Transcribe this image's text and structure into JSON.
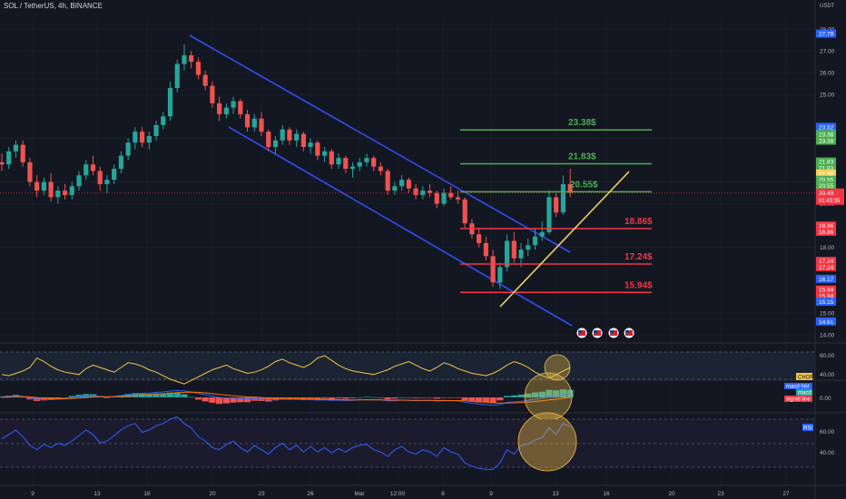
{
  "header": {
    "symbol_title": "SOL / TetherUS, 4h, BINANCE",
    "currency": "USDT"
  },
  "colors": {
    "background": "#131722",
    "up": "#26a69a",
    "down": "#ef5350",
    "channel": "#2f4ef0",
    "trendline": "#f6d35a",
    "target_green": "#4caf50",
    "target_red": "#f23645",
    "chop": "#f6c343",
    "rsi": "#2962ff",
    "macd_line": "#2962ff",
    "signal_line": "#ff6d00"
  },
  "chart_data": {
    "type": "candlestick",
    "title": "SOL / TetherUS, 4h, BINANCE",
    "ylim": [
      13.7,
      28.3
    ],
    "y_ticks": [
      "28.00",
      "27.00",
      "26.00",
      "25.00",
      "23.00",
      "21.00",
      "20.00",
      "18.00",
      "15.00",
      "14.00"
    ],
    "x_ticks": [
      "9",
      "13",
      "16",
      "20",
      "23",
      "26",
      "Mar",
      "12:00",
      "6",
      "9",
      "13",
      "16",
      "20",
      "23",
      "27"
    ],
    "current_price": "20.49",
    "countdown": "01:43:35",
    "targets": [
      {
        "label": "23.38$",
        "value": 23.38,
        "color": "green"
      },
      {
        "label": "21.83$",
        "value": 21.83,
        "color": "green"
      },
      {
        "label": "20.55$",
        "value": 20.55,
        "color": "green"
      },
      {
        "label": "18.86$",
        "value": 18.86,
        "color": "red"
      },
      {
        "label": "17.24$",
        "value": 17.24,
        "color": "red"
      },
      {
        "label": "15.94$",
        "value": 15.94,
        "color": "red"
      }
    ],
    "price_tags": [
      {
        "label": "27.79",
        "value": 27.79,
        "color": "#2962ff"
      },
      {
        "label": "23.52",
        "value": 23.52,
        "color": "#2962ff"
      },
      {
        "label": "23.38",
        "value": 23.19,
        "color": "#4caf50"
      },
      {
        "label": "23.38",
        "value": 22.89,
        "color": "#4caf50"
      },
      {
        "label": "21.83",
        "value": 21.93,
        "color": "#4caf50"
      },
      {
        "label": "21.83",
        "value": 21.65,
        "color": "#4caf50"
      },
      {
        "label": "21.38",
        "value": 21.38,
        "color": "#f6d35a"
      },
      {
        "label": "20.55",
        "value": 21.1,
        "color": "#4caf50"
      },
      {
        "label": "20.55",
        "value": 20.83,
        "color": "#4caf50"
      },
      {
        "label": "18.86",
        "value": 19.0,
        "color": "#f23645"
      },
      {
        "label": "18.86",
        "value": 18.72,
        "color": "#f23645"
      },
      {
        "label": "17.24",
        "value": 17.38,
        "color": "#f23645"
      },
      {
        "label": "17.24",
        "value": 17.1,
        "color": "#f23645"
      },
      {
        "label": "16.17",
        "value": 16.56,
        "color": "#2962ff"
      },
      {
        "label": "15.94",
        "value": 16.07,
        "color": "#f23645"
      },
      {
        "label": "15.94",
        "value": 15.79,
        "color": "#f23645"
      },
      {
        "label": "15.15",
        "value": 15.52,
        "color": "#2962ff"
      },
      {
        "label": "14.61",
        "value": 14.61,
        "color": "#2962ff"
      }
    ],
    "ohlc": [
      [
        21.9,
        22.3,
        21.5,
        21.8
      ],
      [
        21.8,
        22.6,
        21.6,
        22.4
      ],
      [
        22.4,
        22.9,
        22.1,
        22.7
      ],
      [
        22.7,
        22.9,
        21.7,
        21.9
      ],
      [
        21.9,
        22.1,
        20.8,
        21.0
      ],
      [
        21.0,
        21.3,
        20.3,
        20.6
      ],
      [
        20.6,
        21.2,
        20.4,
        21.0
      ],
      [
        21.0,
        21.4,
        20.1,
        20.3
      ],
      [
        20.3,
        20.8,
        20.0,
        20.6
      ],
      [
        20.6,
        20.9,
        20.2,
        20.4
      ],
      [
        20.4,
        21.0,
        20.2,
        20.8
      ],
      [
        20.8,
        21.5,
        20.6,
        21.3
      ],
      [
        21.3,
        22.0,
        21.1,
        21.8
      ],
      [
        21.8,
        22.2,
        21.3,
        21.5
      ],
      [
        21.5,
        21.7,
        20.6,
        20.9
      ],
      [
        20.9,
        21.3,
        20.5,
        21.1
      ],
      [
        21.1,
        21.8,
        20.9,
        21.6
      ],
      [
        21.6,
        22.4,
        21.4,
        22.2
      ],
      [
        22.2,
        23.0,
        22.0,
        22.8
      ],
      [
        22.8,
        23.5,
        22.5,
        23.3
      ],
      [
        23.3,
        23.5,
        22.6,
        22.8
      ],
      [
        22.8,
        23.3,
        22.5,
        23.1
      ],
      [
        23.1,
        23.8,
        22.9,
        23.6
      ],
      [
        23.6,
        24.2,
        23.4,
        24.0
      ],
      [
        24.0,
        25.6,
        23.8,
        25.3
      ],
      [
        25.3,
        26.6,
        25.1,
        26.4
      ],
      [
        26.4,
        27.3,
        26.1,
        26.8
      ],
      [
        26.8,
        27.0,
        26.2,
        26.5
      ],
      [
        26.5,
        26.7,
        25.7,
        25.9
      ],
      [
        25.9,
        26.1,
        25.2,
        25.4
      ],
      [
        25.4,
        25.6,
        24.4,
        24.6
      ],
      [
        24.6,
        24.9,
        23.8,
        24.1
      ],
      [
        24.1,
        24.6,
        23.9,
        24.4
      ],
      [
        24.4,
        24.9,
        24.1,
        24.7
      ],
      [
        24.7,
        24.8,
        23.9,
        24.1
      ],
      [
        24.1,
        24.3,
        23.3,
        23.5
      ],
      [
        23.5,
        24.1,
        23.3,
        23.9
      ],
      [
        23.9,
        24.2,
        23.1,
        23.3
      ],
      [
        23.3,
        23.4,
        22.4,
        22.6
      ],
      [
        22.6,
        23.1,
        22.3,
        22.9
      ],
      [
        22.9,
        23.6,
        22.7,
        23.4
      ],
      [
        23.4,
        23.5,
        22.7,
        22.9
      ],
      [
        22.9,
        23.4,
        22.6,
        23.2
      ],
      [
        23.2,
        23.3,
        22.4,
        22.6
      ],
      [
        22.6,
        23.0,
        22.3,
        22.8
      ],
      [
        22.8,
        22.9,
        22.0,
        22.2
      ],
      [
        22.2,
        22.6,
        21.9,
        22.4
      ],
      [
        22.4,
        22.5,
        21.6,
        21.8
      ],
      [
        21.8,
        22.3,
        21.6,
        22.1
      ],
      [
        22.1,
        22.2,
        21.4,
        21.6
      ],
      [
        21.6,
        21.9,
        21.2,
        21.7
      ],
      [
        21.7,
        22.1,
        21.5,
        21.9
      ],
      [
        21.9,
        22.3,
        21.7,
        22.1
      ],
      [
        22.1,
        22.2,
        21.5,
        21.7
      ],
      [
        21.7,
        21.9,
        21.3,
        21.5
      ],
      [
        21.5,
        21.6,
        20.4,
        20.6
      ],
      [
        20.6,
        21.0,
        20.4,
        20.8
      ],
      [
        20.8,
        21.3,
        20.6,
        21.1
      ],
      [
        21.1,
        21.2,
        20.5,
        20.7
      ],
      [
        20.7,
        20.9,
        20.2,
        20.4
      ],
      [
        20.4,
        20.8,
        20.2,
        20.6
      ],
      [
        20.6,
        20.9,
        20.3,
        20.5
      ],
      [
        20.5,
        20.6,
        19.8,
        20.0
      ],
      [
        20.0,
        20.7,
        19.9,
        20.5
      ],
      [
        20.5,
        20.8,
        20.2,
        20.3
      ],
      [
        20.3,
        20.6,
        20.0,
        20.2
      ],
      [
        20.2,
        20.3,
        18.9,
        19.1
      ],
      [
        19.1,
        19.3,
        18.4,
        18.6
      ],
      [
        18.6,
        18.9,
        18.0,
        18.2
      ],
      [
        18.2,
        18.5,
        17.4,
        17.6
      ],
      [
        17.6,
        17.9,
        16.2,
        16.4
      ],
      [
        16.4,
        17.3,
        16.1,
        17.1
      ],
      [
        17.1,
        18.6,
        16.9,
        18.3
      ],
      [
        18.3,
        18.7,
        17.3,
        17.5
      ],
      [
        17.5,
        18.2,
        17.1,
        17.9
      ],
      [
        17.9,
        18.4,
        17.6,
        18.1
      ],
      [
        18.1,
        18.9,
        17.9,
        18.5
      ],
      [
        18.5,
        19.2,
        18.3,
        18.7
      ],
      [
        18.7,
        20.6,
        18.6,
        20.3
      ],
      [
        20.3,
        20.5,
        19.4,
        19.6
      ],
      [
        19.6,
        21.3,
        19.5,
        20.9
      ],
      [
        20.9,
        21.6,
        20.3,
        20.5
      ]
    ]
  },
  "indicators": {
    "chop": {
      "name": "CHOP",
      "ticks": [
        "60.00",
        "40.00"
      ],
      "ylim": [
        30,
        70
      ],
      "values": [
        44,
        43,
        45,
        47,
        50,
        58,
        55,
        51,
        48,
        46,
        45,
        44,
        49,
        52,
        50,
        48,
        46,
        50,
        54,
        53,
        51,
        48,
        46,
        43,
        40,
        38,
        36,
        39,
        42,
        45,
        48,
        50,
        52,
        49,
        47,
        45,
        46,
        48,
        51,
        55,
        57,
        54,
        52,
        50,
        53,
        58,
        60,
        56,
        52,
        49,
        47,
        46,
        45,
        44,
        46,
        48,
        51,
        53,
        55,
        52,
        49,
        47,
        50,
        54,
        52,
        49,
        47,
        45,
        44,
        43,
        45,
        48,
        52,
        55,
        53,
        50,
        46,
        43,
        41,
        44,
        47,
        50
      ]
    },
    "macd": {
      "name_macd": "macd",
      "name_hist": "macd hist",
      "name_signal": "signal line",
      "ticks": [
        "0.00"
      ],
      "ylim": [
        -0.9,
        0.9
      ],
      "macd": [
        0.05,
        0.12,
        0.2,
        0.1,
        -0.05,
        -0.2,
        -0.22,
        -0.25,
        -0.2,
        -0.15,
        -0.05,
        0.05,
        0.15,
        0.2,
        0.1,
        0.05,
        0.1,
        0.2,
        0.32,
        0.42,
        0.45,
        0.48,
        0.55,
        0.6,
        0.7,
        0.75,
        0.72,
        0.6,
        0.45,
        0.3,
        0.15,
        0.0,
        -0.05,
        -0.08,
        -0.12,
        -0.18,
        -0.15,
        -0.2,
        -0.28,
        -0.25,
        -0.2,
        -0.22,
        -0.2,
        -0.26,
        -0.24,
        -0.3,
        -0.28,
        -0.33,
        -0.3,
        -0.34,
        -0.32,
        -0.28,
        -0.24,
        -0.26,
        -0.28,
        -0.38,
        -0.36,
        -0.3,
        -0.32,
        -0.36,
        -0.34,
        -0.33,
        -0.4,
        -0.36,
        -0.36,
        -0.37,
        -0.52,
        -0.62,
        -0.72,
        -0.78,
        -0.88,
        -0.78,
        -0.55,
        -0.5,
        -0.42,
        -0.32,
        -0.2,
        -0.1,
        0.1,
        0.15,
        0.3,
        0.38
      ],
      "signal": [
        0.0,
        0.03,
        0.07,
        0.08,
        0.05,
        -0.02,
        -0.07,
        -0.12,
        -0.15,
        -0.15,
        -0.12,
        -0.08,
        -0.02,
        0.04,
        0.06,
        0.06,
        0.07,
        0.1,
        0.15,
        0.2,
        0.25,
        0.3,
        0.35,
        0.4,
        0.46,
        0.52,
        0.56,
        0.58,
        0.56,
        0.5,
        0.42,
        0.33,
        0.25,
        0.18,
        0.12,
        0.06,
        0.02,
        -0.02,
        -0.07,
        -0.1,
        -0.12,
        -0.14,
        -0.15,
        -0.17,
        -0.18,
        -0.2,
        -0.22,
        -0.24,
        -0.25,
        -0.27,
        -0.28,
        -0.28,
        -0.27,
        -0.27,
        -0.27,
        -0.29,
        -0.3,
        -0.3,
        -0.31,
        -0.32,
        -0.32,
        -0.32,
        -0.34,
        -0.34,
        -0.35,
        -0.35,
        -0.38,
        -0.42,
        -0.47,
        -0.53,
        -0.6,
        -0.63,
        -0.62,
        -0.6,
        -0.56,
        -0.51,
        -0.45,
        -0.38,
        -0.28,
        -0.2,
        -0.1,
        0.0
      ]
    },
    "rsi": {
      "name": "RSI",
      "ticks": [
        "60.00",
        "40.00"
      ],
      "ylim": [
        26,
        74
      ],
      "values": [
        52,
        56,
        60,
        54,
        46,
        42,
        47,
        44,
        48,
        46,
        50,
        55,
        60,
        56,
        48,
        50,
        55,
        60,
        64,
        66,
        58,
        60,
        64,
        66,
        70,
        72,
        66,
        62,
        54,
        50,
        44,
        42,
        47,
        50,
        44,
        40,
        46,
        42,
        38,
        44,
        48,
        42,
        46,
        40,
        45,
        40,
        44,
        39,
        43,
        40,
        44,
        46,
        47,
        42,
        40,
        36,
        42,
        45,
        40,
        38,
        42,
        40,
        36,
        44,
        40,
        38,
        30,
        27,
        25,
        24,
        24,
        30,
        42,
        38,
        46,
        47,
        51,
        53,
        62,
        56,
        66,
        63
      ]
    }
  },
  "event_icons": [
    "us-flag-icon",
    "us-flag-icon",
    "us-flag-icon",
    "us-flag-icon"
  ]
}
